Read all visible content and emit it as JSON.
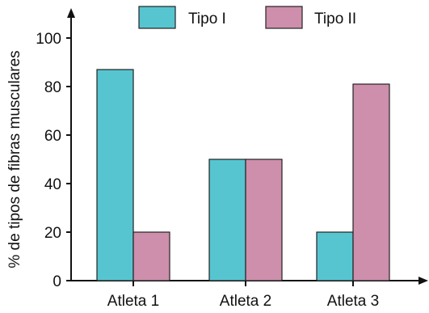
{
  "chart_data": {
    "type": "bar",
    "categories": [
      "Atleta 1",
      "Atleta 2",
      "Atleta 3"
    ],
    "series": [
      {
        "name": "Tipo I",
        "values": [
          87,
          50,
          20
        ],
        "color": "#56c5d0"
      },
      {
        "name": "Tipo II",
        "values": [
          20,
          50,
          81
        ],
        "color": "#cd8fab"
      }
    ],
    "ylabel": "% de tipos de fibras musculares",
    "xlabel": "",
    "ylim": [
      0,
      100
    ],
    "yticks": [
      "0",
      "20",
      "40",
      "60",
      "80",
      "100"
    ],
    "grid": false,
    "legend_position": "top"
  }
}
